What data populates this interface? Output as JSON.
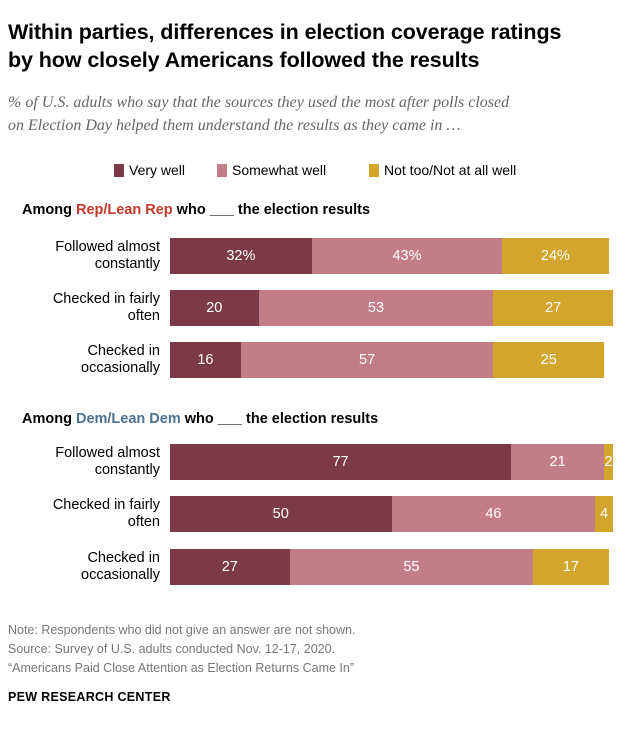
{
  "title_line1": "Within parties, differences in election coverage ratings",
  "title_line2": "by how closely Americans followed the results",
  "subtitle_line1": "% of U.S. adults who say that the sources they used the most after polls closed",
  "subtitle_line2": "on Election Day helped them understand the results as they came in …",
  "colors": {
    "very_well": "#7b3a47",
    "somewhat_well": "#c27d87",
    "not_too": "#d4a52c",
    "rep": "#c0392b",
    "dem": "#4e7391"
  },
  "legend": {
    "very_well": "Very well",
    "somewhat_well": "Somewhat well",
    "not_too": "Not too/Not at all well"
  },
  "groups": [
    {
      "prefix": "Among ",
      "party": "Rep/Lean Rep",
      "suffix": " who ___ the election results"
    },
    {
      "prefix": "Among ",
      "party": "Dem/Lean Dem",
      "suffix": " who ___ the election results"
    }
  ],
  "categories": [
    [
      "Followed almost",
      "constantly"
    ],
    [
      "Checked in fairly",
      "often"
    ],
    [
      "Checked in",
      "occasionally"
    ]
  ],
  "note_lines": [
    "Note: Respondents who did not give an answer are not shown.",
    "Source: Survey of U.S. adults conducted Nov. 12-17, 2020.",
    "“Americans Paid Close Attention as Election Returns Came In”"
  ],
  "org": "PEW RESEARCH CENTER",
  "chart_data": {
    "type": "bar",
    "orientation": "horizontal-stacked",
    "series_order": [
      "Very well",
      "Somewhat well",
      "Not too/Not at all well"
    ],
    "panels": [
      {
        "group": "Rep/Lean Rep",
        "rows": [
          {
            "category": "Followed almost constantly",
            "values": [
              32,
              43,
              24
            ],
            "labels": [
              "32%",
              "43%",
              "24%"
            ]
          },
          {
            "category": "Checked in fairly often",
            "values": [
              20,
              53,
              27
            ],
            "labels": [
              "20",
              "53",
              "27"
            ]
          },
          {
            "category": "Checked in occasionally",
            "values": [
              16,
              57,
              25
            ],
            "labels": [
              "16",
              "57",
              "25"
            ]
          }
        ]
      },
      {
        "group": "Dem/Lean Dem",
        "rows": [
          {
            "category": "Followed almost constantly",
            "values": [
              77,
              21,
              2
            ],
            "labels": [
              "77",
              "21",
              "2"
            ]
          },
          {
            "category": "Checked in fairly often",
            "values": [
              50,
              46,
              4
            ],
            "labels": [
              "50",
              "46",
              "4"
            ]
          },
          {
            "category": "Checked in occasionally",
            "values": [
              27,
              55,
              17
            ],
            "labels": [
              "27",
              "55",
              "17"
            ]
          }
        ]
      }
    ],
    "xlim": [
      0,
      100
    ]
  }
}
